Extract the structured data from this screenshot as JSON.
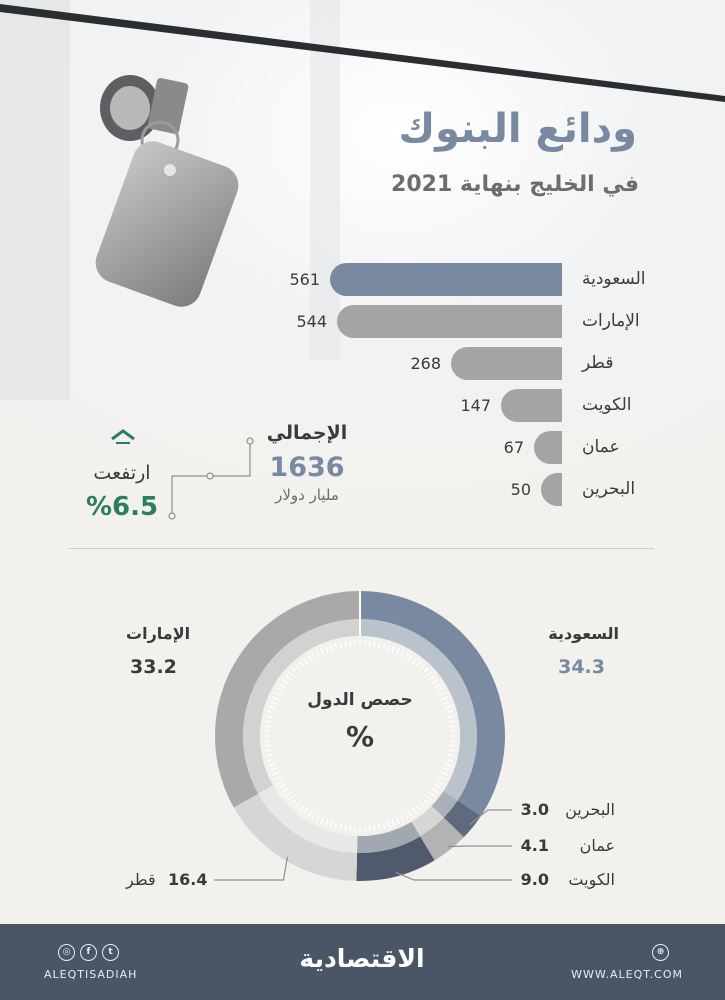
{
  "header": {
    "title": "ودائع البنوك",
    "subtitle": "في الخليج بنهاية 2021"
  },
  "chart_data": [
    {
      "type": "bar",
      "orientation": "horizontal",
      "categories": [
        "السعودية",
        "الإمارات",
        "قطر",
        "الكويت",
        "عمان",
        "البحرين"
      ],
      "values": [
        561,
        544,
        268,
        147,
        67,
        50
      ],
      "value_labels": [
        "561",
        "544",
        "268",
        "147",
        "67",
        "50"
      ],
      "highlight_index": 0
    },
    {
      "type": "pie",
      "style": "donut",
      "center_label": "حصص الدول",
      "center_unit": "%",
      "slices": [
        {
          "name": "السعودية",
          "value": 34.3,
          "label": "34.3"
        },
        {
          "name": "البحرين",
          "value": 3.0,
          "label": "3.0"
        },
        {
          "name": "عمان",
          "value": 4.1,
          "label": "4.1"
        },
        {
          "name": "الكويت",
          "value": 9.0,
          "label": "9.0"
        },
        {
          "name": "قطر",
          "value": 16.4,
          "label": "16.4"
        },
        {
          "name": "الإمارات",
          "value": 33.2,
          "label": "33.2"
        }
      ]
    }
  ],
  "summary": {
    "total_label": "الإجمالي",
    "total_value": "1636",
    "total_unit": "مليار دولار",
    "change_label": "ارتفعت",
    "change_value": "%6.5"
  },
  "footer": {
    "logo": "الاقتصادية",
    "handle": "ALEQTISADIAH",
    "site": "WWW.ALEQT.COM"
  },
  "colors": {
    "accent": "#7889a1",
    "bar": "#a4a4a4",
    "positive": "#2e7d60",
    "footer": "#4a5566"
  }
}
